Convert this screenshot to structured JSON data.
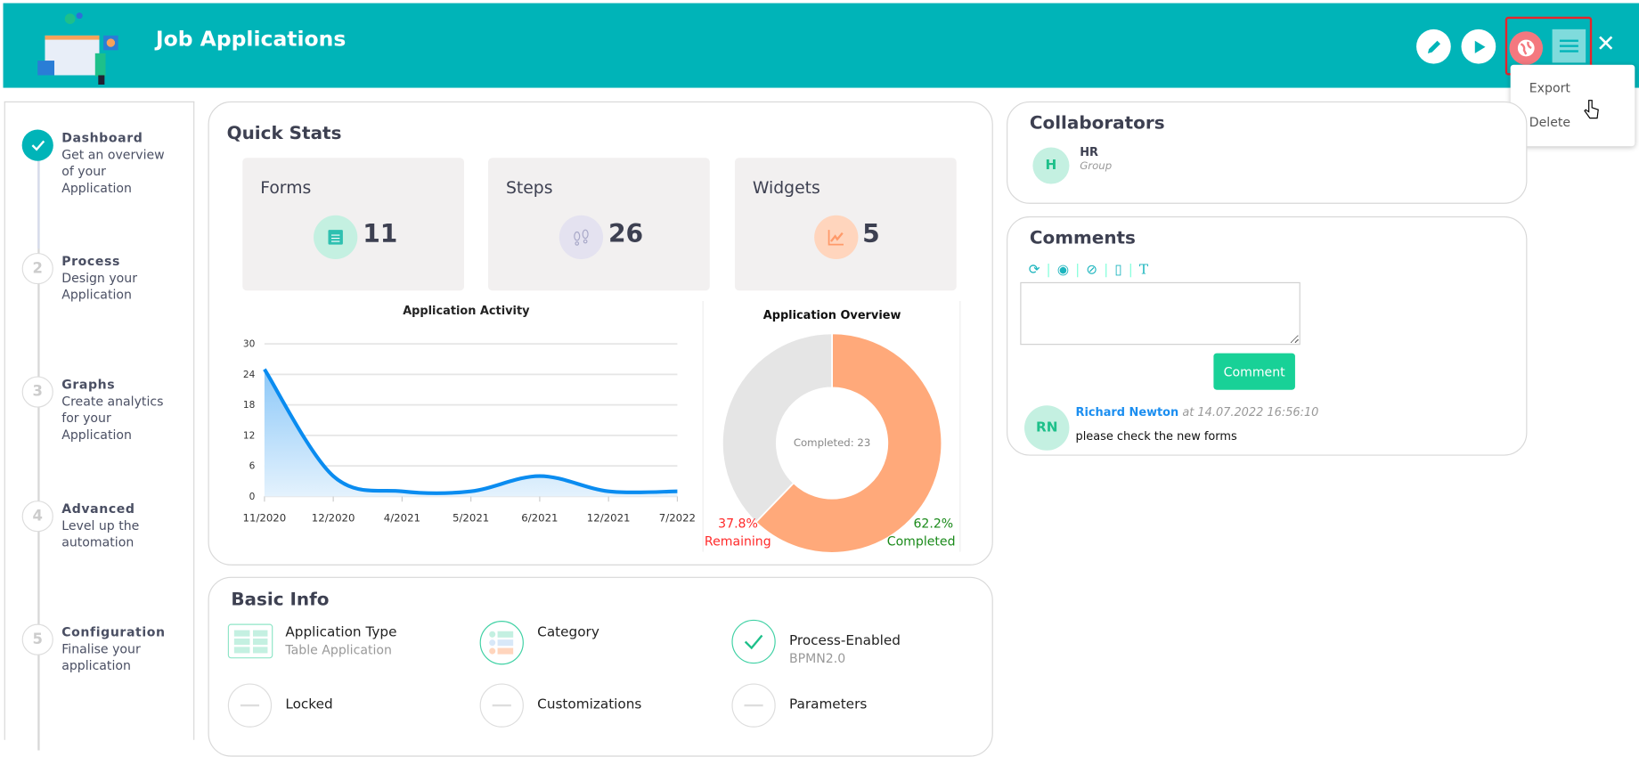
{
  "header": {
    "title": "Job Applications",
    "menu": [
      "Export",
      "Delete"
    ]
  },
  "sidebar": {
    "steps": [
      {
        "num": "",
        "title": "Dashboard",
        "desc": "Get an overview of your Application",
        "done": true
      },
      {
        "num": "2",
        "title": "Process",
        "desc": "Design your Application"
      },
      {
        "num": "3",
        "title": "Graphs",
        "desc": "Create analytics for your Application"
      },
      {
        "num": "4",
        "title": "Advanced",
        "desc": "Level up the automation"
      },
      {
        "num": "5",
        "title": "Configuration",
        "desc": "Finalise your application"
      }
    ]
  },
  "quick_stats": {
    "title": "Quick Stats",
    "items": [
      {
        "label": "Forms",
        "value": "11",
        "icon": "form-list-icon",
        "color": "#c4f0e1"
      },
      {
        "label": "Steps",
        "value": "26",
        "icon": "footsteps-icon",
        "color": "#e4e2f0"
      },
      {
        "label": "Widgets",
        "value": "5",
        "icon": "chart-line-icon",
        "color": "#ffd5bd"
      }
    ]
  },
  "chart_data": [
    {
      "type": "area",
      "title": "Application Activity",
      "categories": [
        "11/2020",
        "12/2020",
        "4/2021",
        "5/2021",
        "6/2021",
        "12/2021",
        "7/2022"
      ],
      "values": [
        25,
        4,
        1,
        1,
        4,
        1,
        1
      ],
      "yticks": [
        "0",
        "6",
        "12",
        "18",
        "24",
        "30"
      ],
      "ylim": [
        0,
        30
      ],
      "grid": true,
      "color": "#0a8cf0"
    },
    {
      "type": "pie",
      "title": "Application Overview",
      "center_label": "Completed: 23",
      "slices": [
        {
          "name": "Completed",
          "percent": 62.2,
          "label": "62.2%",
          "color": "#ffa97a",
          "label_color": "#1a8a1a"
        },
        {
          "name": "Remaining",
          "percent": 37.8,
          "label": "37.8%",
          "color": "#e5e5e5",
          "label_color": "#ff2a2a"
        }
      ]
    }
  ],
  "basic_info": {
    "title": "Basic Info",
    "items": [
      {
        "label": "Application Type",
        "sub": "Table Application"
      },
      {
        "label": "Category",
        "sub": ""
      },
      {
        "label": "Process-Enabled",
        "sub": "BPMN2.0"
      },
      {
        "label": "Locked"
      },
      {
        "label": "Customizations"
      },
      {
        "label": "Parameters"
      }
    ]
  },
  "collaborators": {
    "title": "Collaborators",
    "items": [
      {
        "initial": "H",
        "name": "HR",
        "type": "Group"
      }
    ]
  },
  "comments": {
    "title": "Comments",
    "textarea_value": "",
    "button": "Comment",
    "items": [
      {
        "initials": "RN",
        "author": "Richard Newton",
        "at": "at 14.07.2022 16:56:10",
        "text": "please check the new forms"
      }
    ]
  }
}
